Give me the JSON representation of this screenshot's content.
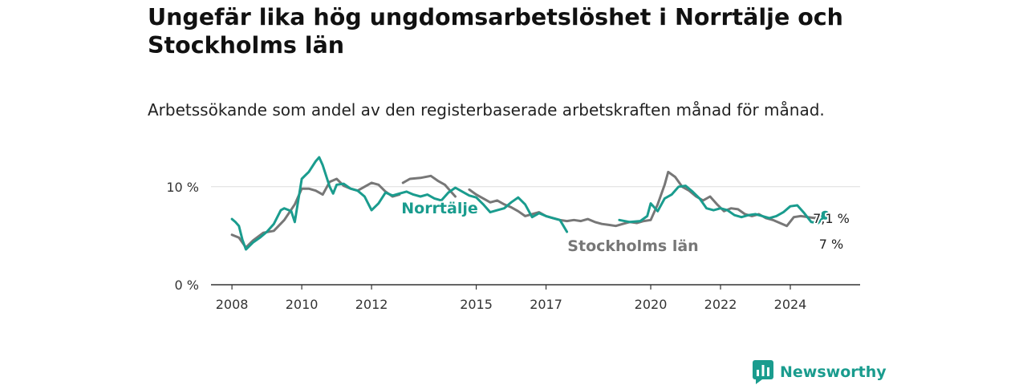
{
  "title": "Ungefär lika hög ungdomsarbetslöshet i Norrtälje och Stockholms län",
  "subtitle": "Arbetssökande som andel av den registerbaserade arbetskraften månad för månad.",
  "brand": {
    "name": "Newsworthy",
    "icon": "newsworthy-chart-icon",
    "color": "#1a9c8e"
  },
  "chart_data": {
    "type": "line",
    "title": "",
    "xlabel": "",
    "ylabel": "",
    "ylim": [
      0,
      13.5
    ],
    "xlim": [
      2007.4,
      2026.0
    ],
    "grid": true,
    "y_ticks": [
      {
        "value": 0,
        "label": "0 %"
      },
      {
        "value": 10,
        "label": "10 %"
      }
    ],
    "x_ticks": [
      {
        "value": 2008,
        "label": "2008"
      },
      {
        "value": 2010,
        "label": "2010"
      },
      {
        "value": 2012,
        "label": "2012"
      },
      {
        "value": 2015,
        "label": "2015"
      },
      {
        "value": 2017,
        "label": "2017"
      },
      {
        "value": 2020,
        "label": "2020"
      },
      {
        "value": 2022,
        "label": "2022"
      },
      {
        "value": 2024,
        "label": "2024"
      }
    ],
    "series": [
      {
        "name": "Stockholms län",
        "color": "#777777",
        "end_label": "7 %",
        "points": [
          [
            2008.0,
            5.1
          ],
          [
            2008.2,
            4.8
          ],
          [
            2008.4,
            3.8
          ],
          [
            2008.6,
            4.5
          ],
          [
            2008.9,
            5.3
          ],
          [
            2009.2,
            5.5
          ],
          [
            2009.5,
            6.6
          ],
          [
            2009.8,
            8.2
          ],
          [
            2010.0,
            9.8
          ],
          [
            2010.2,
            9.8
          ],
          [
            2010.4,
            9.6
          ],
          [
            2010.6,
            9.2
          ],
          [
            2010.8,
            10.5
          ],
          [
            2011.0,
            10.8
          ],
          [
            2011.2,
            10.1
          ],
          [
            2011.4,
            9.8
          ],
          [
            2011.6,
            9.6
          ],
          [
            2011.8,
            10.0
          ],
          [
            2012.0,
            10.4
          ],
          [
            2012.2,
            10.2
          ],
          [
            2012.4,
            9.5
          ],
          [
            2012.6,
            9.0
          ],
          [
            2012.8,
            9.2
          ],
          null,
          [
            2012.9,
            10.4
          ],
          [
            2013.1,
            10.8
          ],
          [
            2013.4,
            10.9
          ],
          [
            2013.7,
            11.1
          ],
          [
            2013.9,
            10.6
          ],
          [
            2014.1,
            10.2
          ],
          [
            2014.3,
            9.4
          ],
          [
            2014.4,
            9.0
          ],
          null,
          [
            2014.8,
            9.7
          ],
          [
            2015.0,
            9.2
          ],
          [
            2015.2,
            8.8
          ],
          [
            2015.4,
            8.4
          ],
          [
            2015.6,
            8.6
          ],
          [
            2015.8,
            8.2
          ],
          [
            2016.0,
            7.9
          ],
          [
            2016.2,
            7.5
          ],
          [
            2016.4,
            7.0
          ],
          [
            2016.6,
            7.2
          ],
          [
            2016.8,
            7.4
          ],
          [
            2017.0,
            7.0
          ],
          [
            2017.2,
            6.8
          ],
          [
            2017.4,
            6.6
          ],
          [
            2017.6,
            6.5
          ],
          [
            2017.8,
            6.6
          ],
          [
            2018.0,
            6.5
          ],
          [
            2018.2,
            6.7
          ],
          [
            2018.4,
            6.4
          ],
          [
            2018.6,
            6.2
          ],
          [
            2018.8,
            6.1
          ],
          [
            2019.0,
            6.0
          ],
          [
            2019.2,
            6.2
          ],
          [
            2019.4,
            6.4
          ],
          [
            2019.6,
            6.3
          ],
          [
            2019.8,
            6.5
          ],
          [
            2020.0,
            6.6
          ],
          [
            2020.2,
            8.2
          ],
          [
            2020.4,
            10.2
          ],
          [
            2020.5,
            11.5
          ],
          [
            2020.7,
            11.0
          ],
          [
            2020.9,
            10.0
          ],
          [
            2021.1,
            9.6
          ],
          [
            2021.3,
            9.0
          ],
          [
            2021.5,
            8.6
          ],
          [
            2021.7,
            9.0
          ],
          [
            2021.9,
            8.2
          ],
          [
            2022.1,
            7.5
          ],
          [
            2022.3,
            7.8
          ],
          [
            2022.5,
            7.7
          ],
          [
            2022.7,
            7.2
          ],
          [
            2022.9,
            7.0
          ],
          [
            2023.1,
            7.2
          ],
          [
            2023.3,
            6.8
          ],
          [
            2023.5,
            6.6
          ],
          [
            2023.7,
            6.3
          ],
          [
            2023.9,
            6.0
          ],
          [
            2024.1,
            6.9
          ],
          [
            2024.3,
            7.0
          ],
          [
            2024.5,
            6.9
          ],
          [
            2024.7,
            6.8
          ],
          [
            2024.9,
            7.2
          ],
          [
            2025.1,
            7.0
          ]
        ]
      },
      {
        "name": "Norrtälje",
        "color": "#1a9c8e",
        "end_label": "7,1 %",
        "points": [
          [
            2008.0,
            6.7
          ],
          [
            2008.1,
            6.4
          ],
          [
            2008.2,
            6.0
          ],
          [
            2008.3,
            4.6
          ],
          [
            2008.4,
            3.6
          ],
          [
            2008.6,
            4.3
          ],
          [
            2008.8,
            4.8
          ],
          [
            2009.0,
            5.4
          ],
          [
            2009.2,
            6.2
          ],
          [
            2009.4,
            7.6
          ],
          [
            2009.5,
            7.8
          ],
          [
            2009.7,
            7.5
          ],
          [
            2009.8,
            6.4
          ],
          [
            2009.9,
            8.6
          ],
          [
            2010.0,
            10.8
          ],
          [
            2010.2,
            11.5
          ],
          [
            2010.4,
            12.6
          ],
          [
            2010.5,
            13.0
          ],
          [
            2010.6,
            12.2
          ],
          [
            2010.8,
            10.0
          ],
          [
            2010.9,
            9.3
          ],
          [
            2011.0,
            10.2
          ],
          [
            2011.2,
            10.3
          ],
          [
            2011.4,
            9.8
          ],
          [
            2011.6,
            9.6
          ],
          [
            2011.8,
            9.0
          ],
          [
            2012.0,
            7.6
          ],
          [
            2012.2,
            8.3
          ],
          [
            2012.4,
            9.4
          ],
          [
            2012.6,
            9.1
          ],
          [
            2012.8,
            9.3
          ],
          [
            2013.0,
            9.5
          ],
          [
            2013.2,
            9.2
          ],
          [
            2013.4,
            9.0
          ],
          [
            2013.6,
            9.2
          ],
          [
            2013.8,
            8.8
          ],
          [
            2014.0,
            8.6
          ],
          [
            2014.2,
            9.4
          ],
          [
            2014.4,
            9.9
          ],
          [
            2014.6,
            9.5
          ],
          [
            2014.8,
            9.1
          ],
          [
            2015.0,
            8.9
          ],
          [
            2015.2,
            8.2
          ],
          [
            2015.4,
            7.4
          ],
          [
            2015.6,
            7.6
          ],
          [
            2015.8,
            7.8
          ],
          [
            2016.0,
            8.4
          ],
          [
            2016.2,
            8.9
          ],
          [
            2016.4,
            8.2
          ],
          [
            2016.6,
            6.9
          ],
          [
            2016.8,
            7.3
          ],
          [
            2017.0,
            7.0
          ],
          [
            2017.2,
            6.8
          ],
          [
            2017.4,
            6.6
          ],
          [
            2017.6,
            5.4
          ],
          null,
          [
            2019.1,
            6.6
          ],
          [
            2019.4,
            6.4
          ],
          [
            2019.7,
            6.5
          ],
          [
            2019.9,
            7.0
          ],
          [
            2020.0,
            8.3
          ],
          [
            2020.2,
            7.5
          ],
          [
            2020.4,
            8.8
          ],
          [
            2020.6,
            9.2
          ],
          [
            2020.8,
            10.0
          ],
          [
            2021.0,
            10.1
          ],
          [
            2021.2,
            9.5
          ],
          [
            2021.4,
            8.8
          ],
          [
            2021.6,
            7.8
          ],
          [
            2021.8,
            7.6
          ],
          [
            2022.0,
            7.8
          ],
          [
            2022.2,
            7.6
          ],
          [
            2022.4,
            7.1
          ],
          [
            2022.6,
            6.9
          ],
          [
            2022.8,
            7.1
          ],
          [
            2023.0,
            7.2
          ],
          [
            2023.2,
            7.0
          ],
          [
            2023.4,
            6.8
          ],
          [
            2023.6,
            7.0
          ],
          [
            2023.8,
            7.4
          ],
          [
            2024.0,
            8.0
          ],
          [
            2024.2,
            8.1
          ],
          [
            2024.4,
            7.3
          ],
          [
            2024.6,
            6.4
          ],
          [
            2024.8,
            6.3
          ],
          [
            2025.0,
            7.1
          ]
        ]
      }
    ]
  }
}
